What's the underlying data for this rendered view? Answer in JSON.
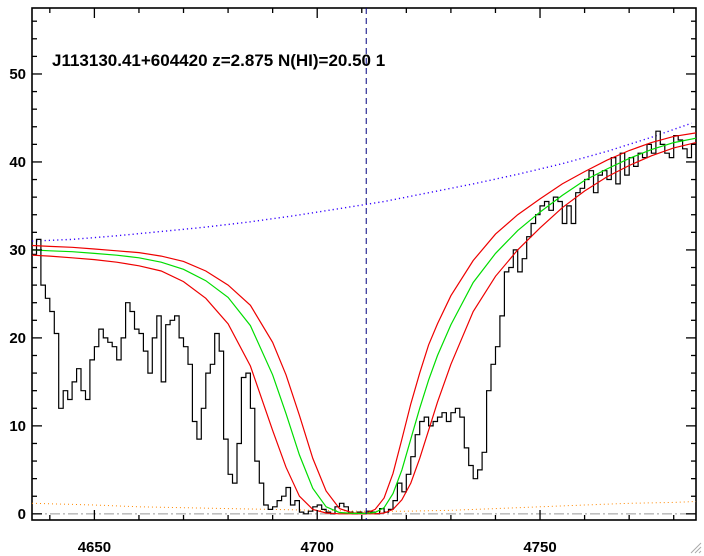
{
  "chart_data": {
    "type": "line",
    "title": "J113130.41+604420 z=2.875 N(HI)=20.50 1",
    "xlabel": "",
    "ylabel": "",
    "xlim": [
      4636,
      4785
    ],
    "ylim": [
      -0.7,
      57.5
    ],
    "x_ticks": [
      4650,
      4700,
      4750
    ],
    "y_ticks": [
      0,
      10,
      20,
      30,
      40,
      50
    ],
    "grid": false,
    "center_line_x": 4711,
    "colors": {
      "spectrum": "#000000",
      "model": "#00dd00",
      "bounds": "#ee0000",
      "continuum": "#3300ff",
      "error": "#ff8800",
      "zero_line": "#999999",
      "center_line": "#000080"
    },
    "series": [
      {
        "role": "spectrum",
        "style": "step",
        "x": [
          4636.5,
          4637.5,
          4638.5,
          4639.5,
          4640.5,
          4641.5,
          4642.5,
          4643.5,
          4644.5,
          4645.5,
          4646.5,
          4647.5,
          4648.5,
          4649.5,
          4650.5,
          4651.5,
          4652.5,
          4653.5,
          4654.5,
          4655.5,
          4656.5,
          4657.5,
          4658.5,
          4659.5,
          4660.5,
          4661.5,
          4662.5,
          4663.5,
          4664.5,
          4665.5,
          4666.5,
          4667.5,
          4668.5,
          4669.5,
          4670.5,
          4671.5,
          4672.5,
          4673.5,
          4674.5,
          4675.5,
          4676.5,
          4677.5,
          4678.5,
          4679.5,
          4680.5,
          4681.5,
          4682.5,
          4683.5,
          4684.5,
          4685.5,
          4686.5,
          4687.5,
          4688.5,
          4689.5,
          4690.5,
          4691.5,
          4692.5,
          4693.5,
          4694.5,
          4695.5,
          4696.5,
          4697.5,
          4698.5,
          4699.5,
          4700.5,
          4701.5,
          4702.5,
          4703.5,
          4704.5,
          4705.5,
          4706.5,
          4707.5,
          4708.5,
          4709.5,
          4710.5,
          4711.5,
          4712.5,
          4713.5,
          4714.5,
          4715.5,
          4716.5,
          4717.5,
          4718.5,
          4719.5,
          4720.5,
          4721.5,
          4722.5,
          4723.5,
          4724.5,
          4725.5,
          4726.5,
          4727.5,
          4728.5,
          4729.5,
          4730.5,
          4731.5,
          4732.5,
          4733.5,
          4734.5,
          4735.5,
          4736.5,
          4737.5,
          4738.5,
          4739.5,
          4740.5,
          4741.5,
          4742.5,
          4743.5,
          4744.5,
          4745.5,
          4746.5,
          4747.5,
          4748.5,
          4749.5,
          4750.5,
          4751.5,
          4752.5,
          4753.5,
          4754.5,
          4755.5,
          4756.5,
          4757.5,
          4758.5,
          4759.5,
          4760.5,
          4761.5,
          4762.5,
          4763.5,
          4764.5,
          4765.5,
          4766.5,
          4767.5,
          4768.5,
          4769.5,
          4770.5,
          4771.5,
          4772.5,
          4773.5,
          4774.5,
          4775.5,
          4776.5,
          4777.5,
          4778.5,
          4779.5,
          4780.5,
          4781.5,
          4782.5,
          4783.5,
          4784.5
        ],
        "y": [
          29.5,
          31.2,
          26.0,
          24.5,
          23.0,
          20.5,
          12.0,
          14.0,
          13.0,
          15.0,
          16.5,
          14.0,
          13.0,
          17.5,
          19.0,
          21.0,
          20.0,
          19.5,
          19.0,
          17.5,
          20.0,
          24.0,
          23.0,
          21.0,
          20.5,
          18.5,
          16.0,
          20.0,
          22.5,
          15.0,
          21.5,
          22.0,
          22.5,
          20.0,
          19.0,
          17.0,
          10.5,
          8.5,
          12.0,
          16.0,
          17.0,
          20.5,
          18.5,
          8.5,
          4.5,
          3.5,
          8.0,
          15.5,
          16.0,
          12.0,
          6.0,
          3.5,
          1.0,
          0.5,
          0.8,
          1.5,
          2.0,
          3.0,
          1.0,
          1.5,
          0.2,
          0.0,
          0.3,
          0.8,
          1.0,
          0.5,
          0.2,
          0.0,
          0.8,
          1.2,
          0.8,
          0.2,
          0.0,
          0.2,
          0.0,
          0.3,
          0.2,
          0.0,
          0.6,
          0.2,
          0.5,
          1.5,
          3.5,
          2.5,
          4.5,
          6.5,
          9.0,
          10.5,
          11.0,
          10.0,
          10.5,
          11.0,
          11.5,
          10.5,
          11.5,
          12.0,
          11.0,
          7.5,
          5.5,
          4.0,
          5.0,
          7.0,
          14.0,
          17.0,
          19.0,
          22.5,
          27.5,
          28.0,
          30.0,
          27.5,
          29.0,
          31.5,
          33.0,
          34.0,
          35.0,
          35.5,
          34.5,
          36.0,
          35.5,
          33.0,
          35.0,
          33.0,
          36.5,
          37.0,
          38.0,
          39.0,
          36.5,
          38.5,
          39.0,
          38.0,
          40.5,
          37.5,
          41.0,
          38.5,
          40.5,
          39.5,
          41.0,
          40.5,
          42.0,
          41.0,
          43.5,
          42.0,
          41.0,
          40.5,
          43.0,
          42.5,
          41.5,
          40.5,
          42.0
        ]
      },
      {
        "role": "model",
        "x": [
          4636,
          4640,
          4645,
          4650,
          4655,
          4660,
          4665,
          4670,
          4675,
          4680,
          4685,
          4690,
          4693,
          4696,
          4699,
          4702,
          4705,
          4708,
          4711,
          4713,
          4715,
          4717,
          4719,
          4721,
          4723,
          4725,
          4727,
          4730,
          4735,
          4740,
          4745,
          4750,
          4755,
          4760,
          4765,
          4770,
          4775,
          4780,
          4785
        ],
        "y": [
          30.0,
          29.9,
          29.8,
          29.6,
          29.4,
          29.1,
          28.6,
          27.8,
          26.5,
          24.6,
          21.4,
          15.8,
          11.4,
          6.7,
          2.9,
          0.8,
          0.15,
          0.05,
          0.05,
          0.15,
          0.7,
          2.3,
          5.0,
          8.5,
          12.0,
          15.2,
          18.0,
          21.5,
          26.3,
          29.6,
          32.2,
          34.3,
          36.2,
          37.9,
          39.2,
          40.4,
          41.4,
          42.2,
          42.7
        ]
      },
      {
        "role": "upper-bound",
        "x": [
          4636,
          4640,
          4645,
          4650,
          4655,
          4660,
          4665,
          4670,
          4675,
          4680,
          4685,
          4690,
          4693,
          4696,
          4699,
          4702,
          4705,
          4708,
          4711,
          4713,
          4715,
          4717,
          4719,
          4721,
          4723,
          4725,
          4727,
          4730,
          4735,
          4740,
          4745,
          4750,
          4755,
          4760,
          4765,
          4770,
          4775,
          4780,
          4785
        ],
        "y": [
          30.5,
          30.4,
          30.3,
          30.1,
          29.9,
          29.7,
          29.3,
          28.7,
          27.6,
          26.0,
          23.7,
          19.5,
          15.8,
          11.2,
          6.3,
          2.6,
          0.6,
          0.1,
          0.1,
          0.5,
          1.8,
          4.6,
          8.5,
          12.5,
          16.0,
          19.2,
          21.6,
          24.8,
          28.8,
          31.8,
          34.0,
          35.8,
          37.5,
          38.9,
          40.2,
          41.3,
          42.2,
          42.9,
          43.3
        ]
      },
      {
        "role": "lower-bound",
        "x": [
          4636,
          4640,
          4645,
          4650,
          4655,
          4660,
          4665,
          4670,
          4675,
          4680,
          4685,
          4690,
          4693,
          4696,
          4699,
          4702,
          4705,
          4708,
          4711,
          4713,
          4715,
          4717,
          4719,
          4721,
          4723,
          4725,
          4727,
          4730,
          4735,
          4740,
          4745,
          4750,
          4755,
          4760,
          4765,
          4770,
          4775,
          4780,
          4785
        ],
        "y": [
          29.4,
          29.3,
          29.1,
          28.9,
          28.6,
          28.2,
          27.6,
          26.4,
          24.5,
          21.6,
          16.8,
          9.5,
          5.3,
          2.0,
          0.5,
          0.1,
          0.0,
          0.0,
          0.0,
          0.0,
          0.1,
          0.5,
          1.6,
          3.5,
          6.3,
          9.5,
          12.7,
          17.0,
          23.0,
          27.0,
          30.0,
          32.5,
          34.8,
          36.7,
          38.3,
          39.6,
          40.7,
          41.6,
          42.2
        ]
      },
      {
        "role": "continuum",
        "style": "dotted",
        "x": [
          4636,
          4645,
          4655,
          4665,
          4675,
          4685,
          4695,
          4705,
          4715,
          4725,
          4735,
          4745,
          4755,
          4765,
          4775,
          4784
        ],
        "y": [
          31.0,
          31.2,
          31.6,
          32.1,
          32.6,
          33.2,
          33.9,
          34.7,
          35.5,
          36.5,
          37.5,
          38.6,
          39.8,
          41.2,
          42.8,
          44.4
        ]
      },
      {
        "role": "error",
        "style": "dotted",
        "x": [
          4636,
          4650,
          4660,
          4670,
          4680,
          4690,
          4700,
          4710,
          4720,
          4730,
          4740,
          4750,
          4760,
          4770,
          4780,
          4785
        ],
        "y": [
          1.2,
          1.0,
          0.8,
          0.7,
          0.6,
          0.5,
          0.4,
          0.3,
          0.3,
          0.4,
          0.6,
          0.8,
          1.0,
          1.2,
          1.3,
          1.4
        ]
      }
    ]
  }
}
